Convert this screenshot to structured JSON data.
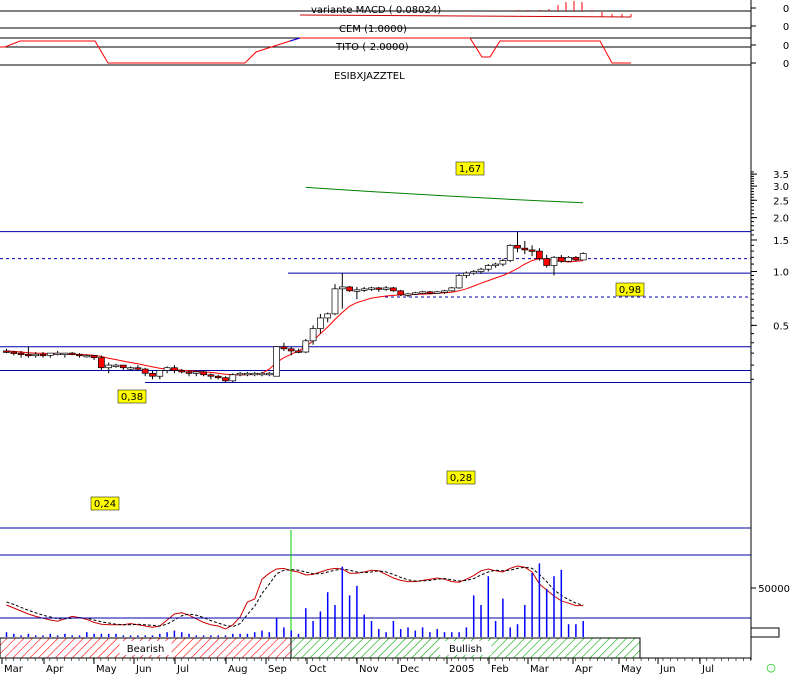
{
  "chart_data": {
    "type": "candlestick",
    "title": "ESIBXJAZZTEL",
    "colors": {
      "up": "#ffffff",
      "down": "#ff0000",
      "sma": "#ff0000",
      "long_avg": "#008000",
      "ref_line": "#0000aa",
      "volume": "#0000ff",
      "bearish_hatch": "#ff0000",
      "bullish_hatch": "#00aa00",
      "tag_bg": "#ffff00",
      "cross_marker": "#00cc00"
    },
    "indicators": [
      {
        "name": "variante MACD",
        "value_text": "variante MACD ( 0.08024)",
        "axis_label": "0"
      },
      {
        "name": "CEM",
        "value_text": "CEM (1.0000)",
        "axis_label": "0"
      },
      {
        "name": "TITO",
        "value_text": "TITO (-2.0000)",
        "axis_label": "0"
      },
      {
        "axis_label": "0"
      }
    ],
    "price_axis": {
      "scale": "log",
      "ticks": [
        "3.5",
        "3.0",
        "2.5",
        "2.0",
        "1.5",
        "1.0",
        "0.5"
      ],
      "range": [
        0.2,
        3.8
      ]
    },
    "volume_axis": {
      "ticks": [
        "50000"
      ]
    },
    "months": [
      "Mar",
      "Apr",
      "May",
      "Jun",
      "Jul",
      "Aug",
      "Sep",
      "Oct",
      "Nov",
      "Dec",
      "2005",
      "Feb",
      "Mar",
      "Apr",
      "May",
      "Jun",
      "Jul"
    ],
    "regimes": [
      {
        "label": "Bearish",
        "from": 0,
        "to": 37
      },
      {
        "label": "Bullish",
        "from": 37,
        "to": 81
      }
    ],
    "reference_levels": [
      {
        "value": 1.67,
        "label": "1,67",
        "style": "solid"
      },
      {
        "value": 1.18,
        "style": "dotted"
      },
      {
        "value": 0.98,
        "label": "0,98",
        "style": "solid"
      },
      {
        "value": 0.72,
        "style": "dotted"
      },
      {
        "value": 0.38,
        "label": "0,38",
        "style": "solid"
      },
      {
        "value": 0.28,
        "label": "0,28",
        "style": "solid"
      },
      {
        "value": 0.24,
        "label": "0,24",
        "style": "solid"
      }
    ],
    "long_moving_average": {
      "start_week": 41,
      "end_week": 79,
      "start": 2.95,
      "end": 2.42
    },
    "weeks": [
      0,
      1,
      2,
      3,
      4,
      5,
      6,
      7,
      8,
      9,
      10,
      11,
      12,
      13,
      14,
      15,
      16,
      17,
      18,
      19,
      20,
      21,
      22,
      23,
      24,
      25,
      26,
      27,
      28,
      29,
      30,
      31,
      32,
      33,
      34,
      35,
      36,
      37,
      38,
      39,
      40,
      41,
      42,
      43,
      44,
      45,
      46,
      47,
      48,
      49,
      50,
      51,
      52,
      53,
      54,
      55,
      56,
      57,
      58,
      59,
      60,
      61,
      62,
      63,
      64,
      65,
      66,
      67,
      68,
      69,
      70,
      71,
      72,
      73,
      74,
      75,
      76,
      77,
      78,
      79
    ],
    "ohlc": [
      [
        0.36,
        0.37,
        0.35,
        0.355
      ],
      [
        0.355,
        0.36,
        0.34,
        0.35
      ],
      [
        0.35,
        0.36,
        0.33,
        0.345
      ],
      [
        0.345,
        0.38,
        0.33,
        0.34
      ],
      [
        0.34,
        0.355,
        0.33,
        0.345
      ],
      [
        0.345,
        0.355,
        0.33,
        0.34
      ],
      [
        0.34,
        0.35,
        0.33,
        0.35
      ],
      [
        0.35,
        0.36,
        0.34,
        0.35
      ],
      [
        0.35,
        0.35,
        0.33,
        0.35
      ],
      [
        0.35,
        0.355,
        0.34,
        0.345
      ],
      [
        0.345,
        0.35,
        0.33,
        0.34
      ],
      [
        0.34,
        0.345,
        0.33,
        0.34
      ],
      [
        0.34,
        0.34,
        0.32,
        0.33
      ],
      [
        0.33,
        0.34,
        0.28,
        0.29
      ],
      [
        0.29,
        0.31,
        0.27,
        0.3
      ],
      [
        0.3,
        0.305,
        0.29,
        0.3
      ],
      [
        0.3,
        0.3,
        0.28,
        0.29
      ],
      [
        0.29,
        0.295,
        0.28,
        0.29
      ],
      [
        0.29,
        0.3,
        0.28,
        0.285
      ],
      [
        0.285,
        0.29,
        0.26,
        0.27
      ],
      [
        0.27,
        0.28,
        0.25,
        0.26
      ],
      [
        0.26,
        0.28,
        0.25,
        0.28
      ],
      [
        0.28,
        0.295,
        0.27,
        0.29
      ],
      [
        0.29,
        0.3,
        0.27,
        0.28
      ],
      [
        0.28,
        0.285,
        0.27,
        0.275
      ],
      [
        0.275,
        0.28,
        0.26,
        0.27
      ],
      [
        0.27,
        0.28,
        0.26,
        0.275
      ],
      [
        0.275,
        0.28,
        0.26,
        0.265
      ],
      [
        0.265,
        0.27,
        0.25,
        0.26
      ],
      [
        0.26,
        0.265,
        0.25,
        0.255
      ],
      [
        0.255,
        0.26,
        0.24,
        0.245
      ],
      [
        0.245,
        0.27,
        0.24,
        0.265
      ],
      [
        0.265,
        0.275,
        0.26,
        0.27
      ],
      [
        0.27,
        0.275,
        0.26,
        0.27
      ],
      [
        0.27,
        0.275,
        0.26,
        0.27
      ],
      [
        0.27,
        0.275,
        0.26,
        0.27
      ],
      [
        0.27,
        0.275,
        0.26,
        0.27
      ],
      [
        0.26,
        0.38,
        0.26,
        0.38
      ],
      [
        0.38,
        0.4,
        0.36,
        0.37
      ],
      [
        0.37,
        0.38,
        0.34,
        0.36
      ],
      [
        0.36,
        0.37,
        0.35,
        0.355
      ],
      [
        0.355,
        0.42,
        0.35,
        0.41
      ],
      [
        0.41,
        0.5,
        0.39,
        0.48
      ],
      [
        0.48,
        0.58,
        0.45,
        0.55
      ],
      [
        0.55,
        0.59,
        0.52,
        0.58
      ],
      [
        0.58,
        0.85,
        0.57,
        0.8
      ],
      [
        0.8,
        0.98,
        0.62,
        0.82
      ],
      [
        0.82,
        0.83,
        0.77,
        0.78
      ],
      [
        0.78,
        0.82,
        0.7,
        0.79
      ],
      [
        0.79,
        0.82,
        0.77,
        0.8
      ],
      [
        0.8,
        0.82,
        0.78,
        0.81
      ],
      [
        0.81,
        0.82,
        0.77,
        0.8
      ],
      [
        0.8,
        0.83,
        0.78,
        0.81
      ],
      [
        0.81,
        0.82,
        0.77,
        0.78
      ],
      [
        0.78,
        0.79,
        0.73,
        0.74
      ],
      [
        0.74,
        0.76,
        0.72,
        0.75
      ],
      [
        0.75,
        0.77,
        0.74,
        0.76
      ],
      [
        0.76,
        0.78,
        0.75,
        0.77
      ],
      [
        0.77,
        0.78,
        0.75,
        0.76
      ],
      [
        0.76,
        0.78,
        0.76,
        0.77
      ],
      [
        0.77,
        0.79,
        0.75,
        0.78
      ],
      [
        0.78,
        0.82,
        0.77,
        0.81
      ],
      [
        0.81,
        0.97,
        0.8,
        0.95
      ],
      [
        0.95,
        1.0,
        0.92,
        0.98
      ],
      [
        0.98,
        1.02,
        0.96,
        1.0
      ],
      [
        1.0,
        1.05,
        0.97,
        1.03
      ],
      [
        1.03,
        1.1,
        1.0,
        1.08
      ],
      [
        1.08,
        1.12,
        1.05,
        1.1
      ],
      [
        1.1,
        1.18,
        1.07,
        1.15
      ],
      [
        1.15,
        1.42,
        1.13,
        1.4
      ],
      [
        1.4,
        1.67,
        1.28,
        1.35
      ],
      [
        1.35,
        1.48,
        1.25,
        1.32
      ],
      [
        1.32,
        1.4,
        1.22,
        1.3
      ],
      [
        1.3,
        1.35,
        1.15,
        1.18
      ],
      [
        1.18,
        1.24,
        1.05,
        1.08
      ],
      [
        1.08,
        1.22,
        0.95,
        1.2
      ],
      [
        1.2,
        1.24,
        1.12,
        1.14
      ],
      [
        1.14,
        1.22,
        1.13,
        1.2
      ],
      [
        1.2,
        1.22,
        1.14,
        1.16
      ],
      [
        1.16,
        1.28,
        1.16,
        1.26
      ]
    ],
    "sma": [
      0.36,
      0.358,
      0.355,
      0.352,
      0.35,
      0.349,
      0.348,
      0.347,
      0.346,
      0.345,
      0.344,
      0.343,
      0.34,
      0.335,
      0.328,
      0.322,
      0.316,
      0.31,
      0.305,
      0.299,
      0.293,
      0.288,
      0.285,
      0.283,
      0.281,
      0.279,
      0.277,
      0.275,
      0.273,
      0.27,
      0.267,
      0.265,
      0.264,
      0.265,
      0.267,
      0.27,
      0.285,
      0.31,
      0.33,
      0.345,
      0.36,
      0.38,
      0.41,
      0.45,
      0.49,
      0.54,
      0.59,
      0.64,
      0.67,
      0.69,
      0.71,
      0.72,
      0.73,
      0.735,
      0.74,
      0.745,
      0.745,
      0.748,
      0.75,
      0.755,
      0.76,
      0.765,
      0.78,
      0.8,
      0.83,
      0.86,
      0.89,
      0.92,
      0.95,
      0.99,
      1.04,
      1.1,
      1.15,
      1.18,
      1.17,
      1.15,
      1.14,
      1.13,
      1.14,
      1.15
    ],
    "stoch_k": [
      0.35,
      0.3,
      0.25,
      0.2,
      0.16,
      0.13,
      0.1,
      0.08,
      0.12,
      0.16,
      0.14,
      0.11,
      0.06,
      0.03,
      0.02,
      0.02,
      0.02,
      0.04,
      0.02,
      0.0,
      -0.02,
      0.0,
      0.1,
      0.2,
      0.22,
      0.18,
      0.12,
      0.06,
      0.02,
      0.0,
      -0.05,
      0.02,
      0.15,
      0.4,
      0.45,
      0.78,
      0.88,
      0.95,
      0.96,
      0.92,
      0.9,
      0.85,
      0.86,
      0.9,
      0.94,
      0.96,
      0.95,
      0.88,
      0.88,
      0.9,
      0.93,
      0.92,
      0.86,
      0.8,
      0.76,
      0.74,
      0.74,
      0.76,
      0.78,
      0.8,
      0.78,
      0.74,
      0.73,
      0.78,
      0.84,
      0.92,
      0.95,
      0.92,
      0.9,
      0.96,
      1.0,
      0.98,
      0.9,
      0.7,
      0.6,
      0.5,
      0.42,
      0.38,
      0.34,
      0.34
    ],
    "stoch_d": [
      0.4,
      0.36,
      0.31,
      0.26,
      0.22,
      0.18,
      0.15,
      0.12,
      0.12,
      0.13,
      0.14,
      0.13,
      0.1,
      0.07,
      0.05,
      0.03,
      0.02,
      0.02,
      0.03,
      0.02,
      0.01,
      0.0,
      0.03,
      0.1,
      0.17,
      0.2,
      0.18,
      0.14,
      0.09,
      0.05,
      0.01,
      -0.01,
      0.04,
      0.19,
      0.33,
      0.54,
      0.7,
      0.87,
      0.93,
      0.94,
      0.93,
      0.9,
      0.87,
      0.87,
      0.9,
      0.93,
      0.95,
      0.93,
      0.9,
      0.89,
      0.9,
      0.92,
      0.9,
      0.86,
      0.81,
      0.77,
      0.75,
      0.75,
      0.76,
      0.78,
      0.79,
      0.77,
      0.75,
      0.76,
      0.79,
      0.85,
      0.9,
      0.93,
      0.92,
      0.93,
      0.96,
      0.98,
      0.96,
      0.86,
      0.74,
      0.6,
      0.51,
      0.44,
      0.38,
      0.35
    ],
    "volume": [
      3,
      2,
      1,
      2,
      1,
      1,
      2,
      1,
      2,
      1,
      1,
      3,
      2,
      2,
      2,
      2,
      1,
      1,
      1,
      1,
      1,
      2,
      3,
      4,
      3,
      2,
      1,
      1,
      1,
      1,
      1,
      2,
      2,
      2,
      3,
      4,
      3,
      12,
      6,
      4,
      2,
      18,
      10,
      16,
      28,
      20,
      44,
      26,
      32,
      14,
      10,
      5,
      3,
      10,
      5,
      6,
      4,
      6,
      3,
      5,
      3,
      3,
      3,
      6,
      26,
      20,
      38,
      10,
      24,
      6,
      8,
      20,
      40,
      46,
      30,
      38,
      42,
      8,
      8,
      10
    ],
    "cross_marker": "○"
  }
}
